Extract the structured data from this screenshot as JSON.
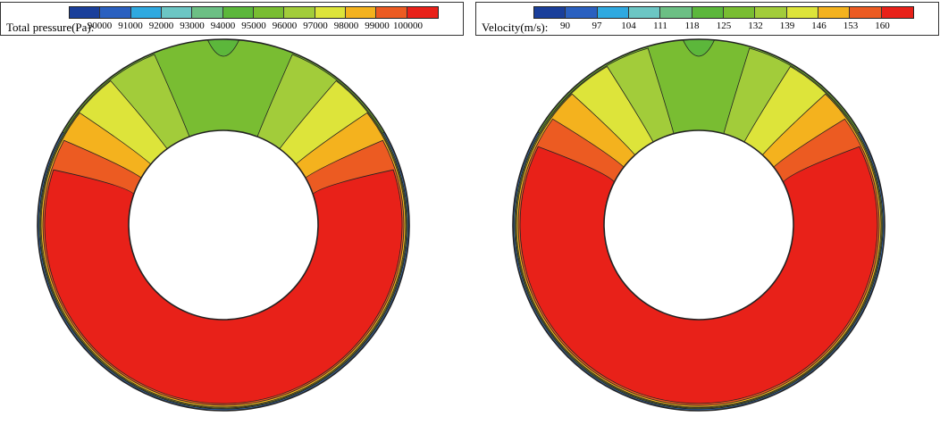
{
  "colors": [
    "#1a3f9b",
    "#2a60c0",
    "#2fa9e0",
    "#6cc6c4",
    "#6cbf84",
    "#5cb73b",
    "#79bd32",
    "#a2cc3a",
    "#dde43a",
    "#f4b21e",
    "#ec5b22",
    "#e82119"
  ],
  "edge_colors": [
    "#3a6fb5",
    "#4d9c9a",
    "#4f9a3a"
  ],
  "panels": [
    {
      "legend_title": "Total pressure(Pa):",
      "tick_labels": [
        "90000",
        "91000",
        "92000",
        "93000",
        "94000",
        "95000",
        "96000",
        "97000",
        "98000",
        "99000",
        "100000"
      ]
    },
    {
      "legend_title": "Velocity(m/s):",
      "tick_labels": [
        "90",
        "97",
        "104",
        "111",
        "118",
        "125",
        "132",
        "139",
        "146",
        "153",
        "160"
      ]
    }
  ]
}
